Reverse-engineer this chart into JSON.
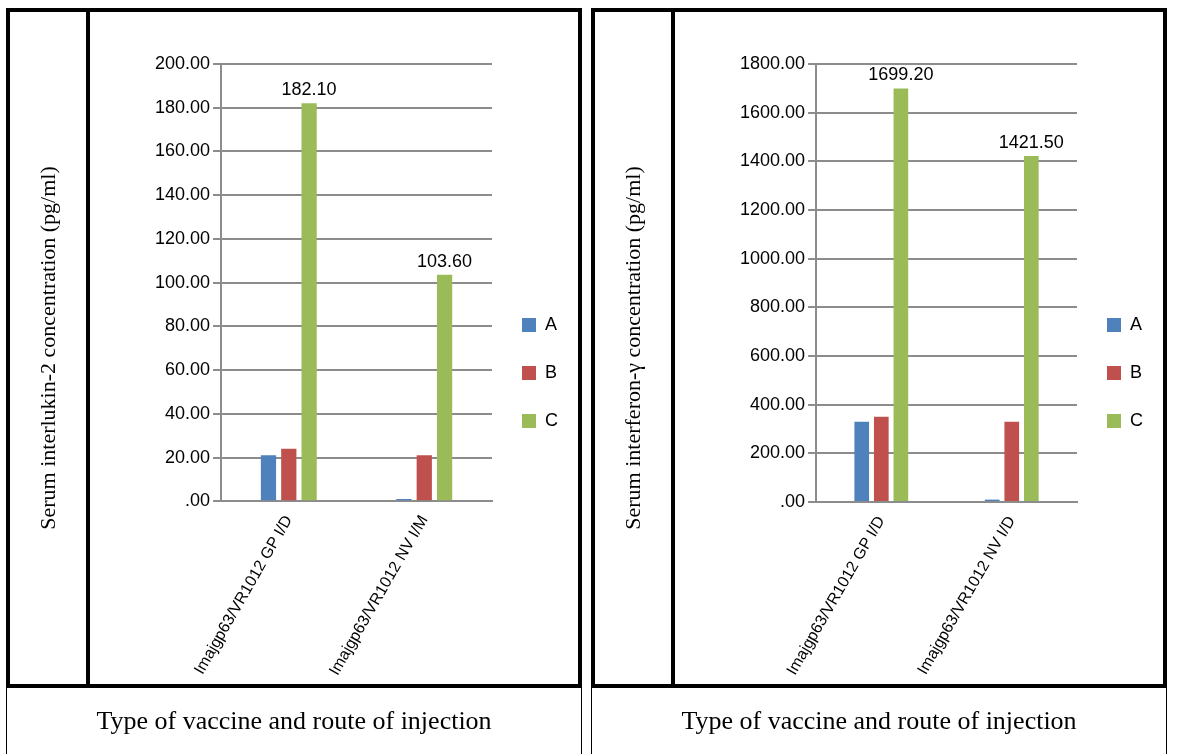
{
  "chart_data": [
    {
      "type": "bar",
      "ylabel": "Serum interlukin-2 concentration (pg/ml)",
      "xlabel": "Type of vaccine and route of injection",
      "categories": [
        "Imajgp63/VR1012 GP I/D",
        "Imajgp63/VR1012 NV I/M"
      ],
      "series": [
        {
          "name": "A",
          "color": "#4f81bd",
          "values": [
            21,
            1
          ]
        },
        {
          "name": "B",
          "color": "#c0504d",
          "values": [
            24,
            21
          ]
        },
        {
          "name": "C",
          "color": "#9bbb59",
          "values": [
            182.1,
            103.6
          ],
          "value_labels": [
            "182.10",
            "103.60"
          ]
        }
      ],
      "ylim": [
        0,
        200
      ],
      "yticks": [
        {
          "value": 0,
          "label": ".00"
        },
        {
          "value": 20,
          "label": "20.00"
        },
        {
          "value": 40,
          "label": "40.00"
        },
        {
          "value": 60,
          "label": "60.00"
        },
        {
          "value": 80,
          "label": "80.00"
        },
        {
          "value": 100,
          "label": "100.00"
        },
        {
          "value": 120,
          "label": "120.00"
        },
        {
          "value": 140,
          "label": "140.00"
        },
        {
          "value": 160,
          "label": "160.00"
        },
        {
          "value": 180,
          "label": "180.00"
        },
        {
          "value": 200,
          "label": "200.00"
        }
      ],
      "grid": "y",
      "legend": "right"
    },
    {
      "type": "bar",
      "ylabel": "Serum interferon-γ concentration (pg/ml)",
      "xlabel": "Type of vaccine and route of injection",
      "categories": [
        "Imajgp63/VR1012 GP I/D",
        "Imajgp63/VR1012 NV I/D"
      ],
      "series": [
        {
          "name": "A",
          "color": "#4f81bd",
          "values": [
            330,
            10
          ]
        },
        {
          "name": "B",
          "color": "#c0504d",
          "values": [
            350,
            330
          ]
        },
        {
          "name": "C",
          "color": "#9bbb59",
          "values": [
            1699.2,
            1421.5
          ],
          "value_labels": [
            "1699.20",
            "1421.50"
          ]
        }
      ],
      "ylim": [
        0,
        1800
      ],
      "yticks": [
        {
          "value": 0,
          "label": ".00"
        },
        {
          "value": 200,
          "label": "200.00"
        },
        {
          "value": 400,
          "label": "400.00"
        },
        {
          "value": 600,
          "label": "600.00"
        },
        {
          "value": 800,
          "label": "800.00"
        },
        {
          "value": 1000,
          "label": "1000.00"
        },
        {
          "value": 1200,
          "label": "1200.00"
        },
        {
          "value": 1400,
          "label": "1400.00"
        },
        {
          "value": 1600,
          "label": "1600.00"
        },
        {
          "value": 1800,
          "label": "1800.00"
        }
      ],
      "grid": "y",
      "legend": "right"
    }
  ]
}
